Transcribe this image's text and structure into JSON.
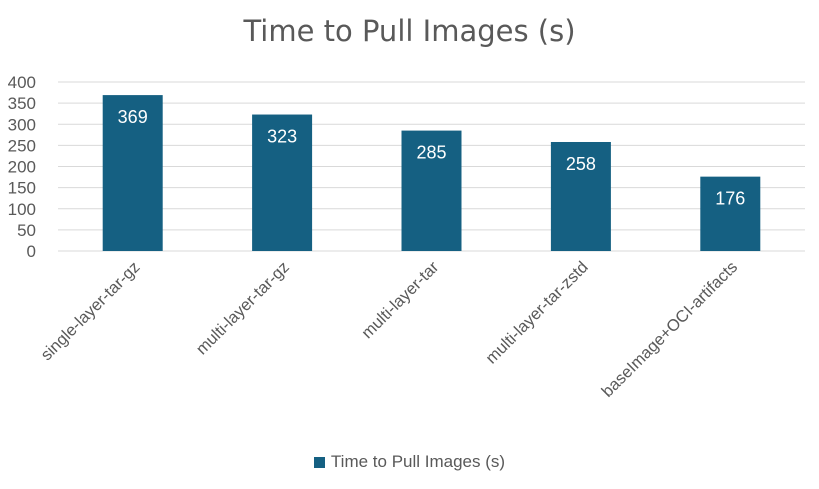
{
  "chart_data": {
    "type": "bar",
    "title": "Time to Pull Images (s)",
    "xlabel": "",
    "ylabel": "",
    "categories": [
      "single-layer-tar-gz",
      "multi-layer-tar-gz",
      "multi-layer-tar",
      "multi-layer-tar-zstd",
      "baseImage+OCI-artifacts"
    ],
    "series": [
      {
        "name": "Time to Pull Images (s)",
        "values": [
          369,
          323,
          285,
          258,
          176
        ],
        "color": "#156082"
      }
    ],
    "ylim": [
      0,
      400
    ],
    "yticks": [
      0,
      50,
      100,
      150,
      200,
      250,
      300,
      350,
      400
    ],
    "grid": true,
    "legend_position": "bottom",
    "data_labels": true
  }
}
